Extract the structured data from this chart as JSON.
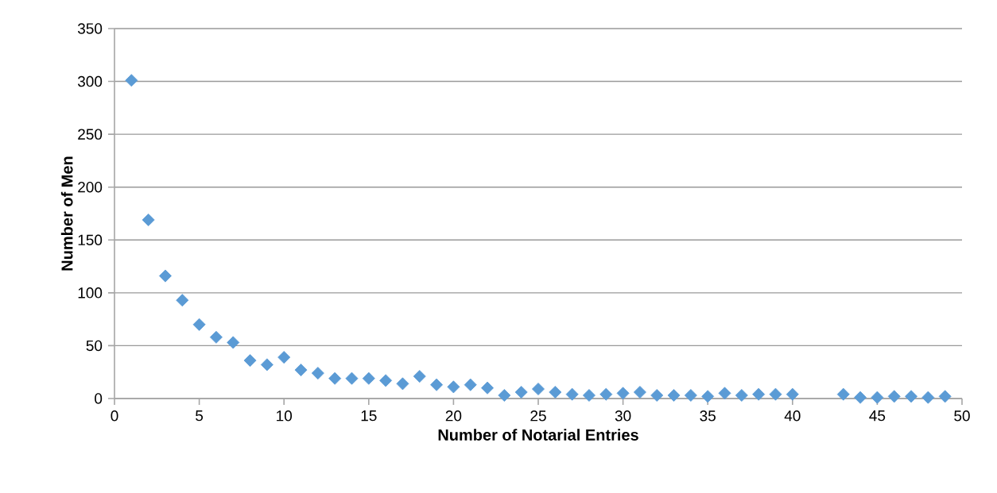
{
  "chart_data": {
    "type": "scatter",
    "xlabel": "Number of Notarial Entries",
    "ylabel": "Number of Men",
    "x": [
      1,
      2,
      3,
      4,
      5,
      6,
      7,
      8,
      9,
      10,
      11,
      12,
      13,
      14,
      15,
      16,
      17,
      18,
      19,
      20,
      21,
      22,
      23,
      24,
      25,
      26,
      27,
      28,
      29,
      30,
      31,
      32,
      33,
      34,
      35,
      36,
      37,
      38,
      39,
      40,
      43,
      44,
      45,
      46,
      47,
      48,
      49
    ],
    "values": [
      301,
      169,
      116,
      93,
      70,
      58,
      53,
      36,
      32,
      39,
      27,
      24,
      19,
      19,
      19,
      17,
      14,
      21,
      13,
      11,
      13,
      10,
      3,
      6,
      9,
      6,
      4,
      3,
      4,
      5,
      6,
      3,
      3,
      3,
      2,
      5,
      3,
      4,
      4,
      4,
      4,
      1,
      1,
      2,
      2,
      1,
      2
    ],
    "color": "#5b9bd5",
    "marker": "diamond",
    "xlim": [
      0,
      50
    ],
    "xticks": [
      0,
      5,
      10,
      15,
      20,
      25,
      30,
      35,
      40,
      45,
      50
    ],
    "ylim": [
      0,
      350
    ],
    "yticks": [
      0,
      50,
      100,
      150,
      200,
      250,
      300,
      350
    ],
    "grid": "y"
  }
}
